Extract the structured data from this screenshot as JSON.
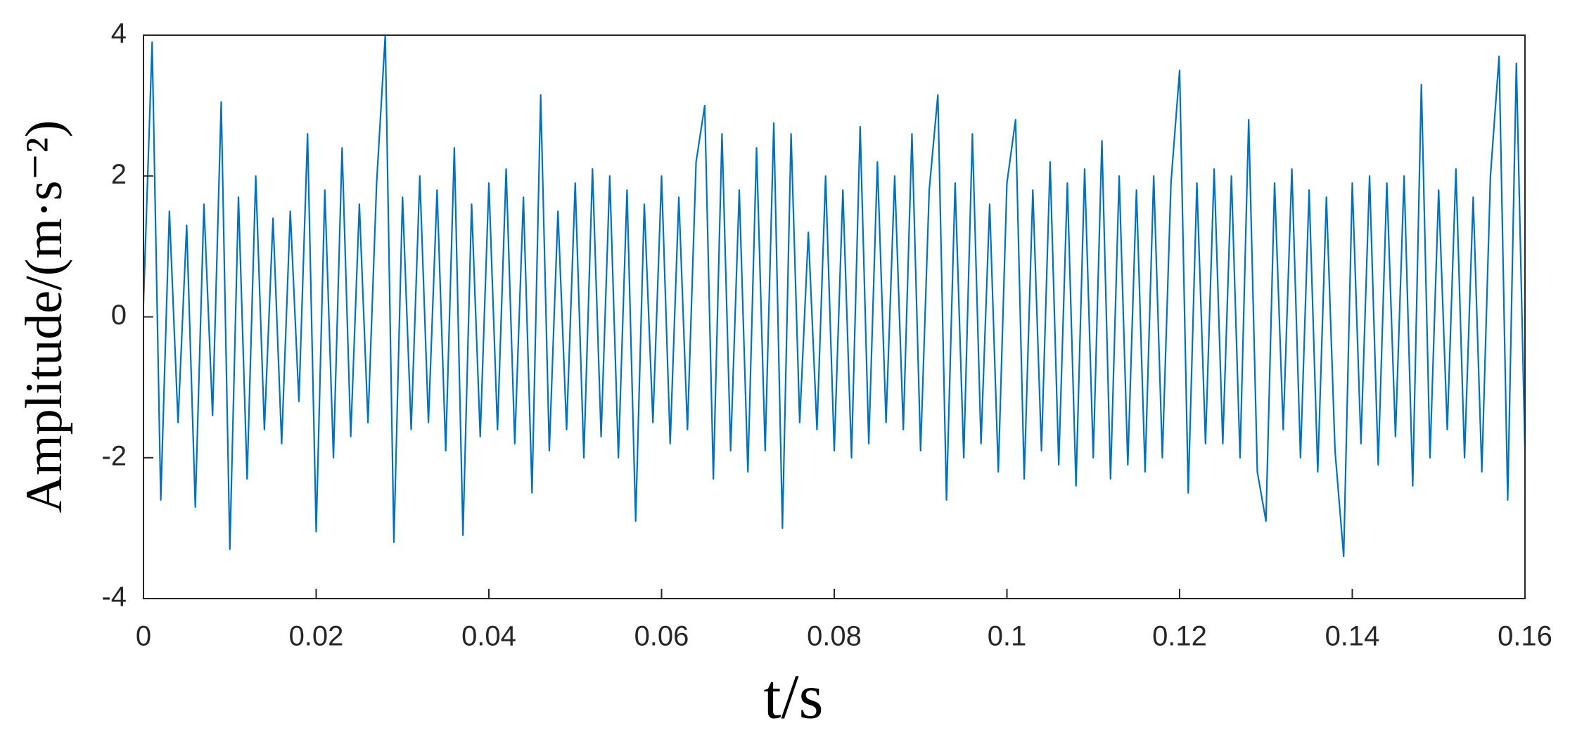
{
  "chart_data": {
    "type": "line",
    "xlabel": "t/s",
    "ylabel": "Amplitude/(m·s⁻²)",
    "color": "#0072bd",
    "xlim": [
      0,
      0.16
    ],
    "xticks": [
      0,
      0.02,
      0.04,
      0.06,
      0.08,
      0.1,
      0.12,
      0.14,
      0.16
    ],
    "ylim": [
      -4,
      4
    ],
    "yticks": [
      -4,
      -2,
      0,
      2,
      4
    ],
    "grid": false,
    "x": [
      0,
      0.001,
      0.002,
      0.003,
      0.004,
      0.005,
      0.006,
      0.007,
      0.008,
      0.009,
      0.01,
      0.011,
      0.012,
      0.013,
      0.014,
      0.015,
      0.016,
      0.017,
      0.018,
      0.019,
      0.02,
      0.021,
      0.022,
      0.023,
      0.024,
      0.025,
      0.026,
      0.027,
      0.028,
      0.029,
      0.03,
      0.031,
      0.032,
      0.033,
      0.034,
      0.035,
      0.036,
      0.037,
      0.038,
      0.039,
      0.04,
      0.041,
      0.042,
      0.043,
      0.044,
      0.045,
      0.046,
      0.047,
      0.048,
      0.049,
      0.05,
      0.051,
      0.052,
      0.053,
      0.054,
      0.055,
      0.056,
      0.057,
      0.058,
      0.059,
      0.06,
      0.061,
      0.062,
      0.063,
      0.064,
      0.065,
      0.066,
      0.067,
      0.068,
      0.069,
      0.07,
      0.071,
      0.072,
      0.073,
      0.074,
      0.075,
      0.076,
      0.077,
      0.078,
      0.079,
      0.08,
      0.081,
      0.082,
      0.083,
      0.084,
      0.085,
      0.086,
      0.087,
      0.088,
      0.089,
      0.09,
      0.091,
      0.092,
      0.093,
      0.094,
      0.095,
      0.096,
      0.097,
      0.098,
      0.099,
      0.1,
      0.101,
      0.102,
      0.103,
      0.104,
      0.105,
      0.106,
      0.107,
      0.108,
      0.109,
      0.11,
      0.111,
      0.112,
      0.113,
      0.114,
      0.115,
      0.116,
      0.117,
      0.118,
      0.119,
      0.12,
      0.121,
      0.122,
      0.123,
      0.124,
      0.125,
      0.126,
      0.127,
      0.128,
      0.129,
      0.13,
      0.131,
      0.132,
      0.133,
      0.134,
      0.135,
      0.136,
      0.137,
      0.138,
      0.139,
      0.14,
      0.141,
      0.142,
      0.143,
      0.144,
      0.145,
      0.146,
      0.147,
      0.148,
      0.149,
      0.15,
      0.151,
      0.152,
      0.153,
      0.154,
      0.155,
      0.156,
      0.157,
      0.158,
      0.159,
      0.16
    ],
    "values": [
      0.2,
      3.9,
      -2.6,
      1.5,
      -1.5,
      1.3,
      -2.7,
      1.6,
      -1.4,
      3.05,
      -3.3,
      1.7,
      -2.3,
      2.0,
      -1.6,
      1.4,
      -1.8,
      1.5,
      -1.2,
      2.6,
      -3.05,
      1.8,
      -2.0,
      2.4,
      -1.7,
      1.6,
      -1.5,
      1.9,
      4.0,
      -3.2,
      1.7,
      -1.6,
      2.0,
      -1.5,
      1.8,
      -1.9,
      2.4,
      -3.1,
      1.6,
      -1.7,
      1.9,
      -1.6,
      2.1,
      -1.8,
      1.7,
      -2.5,
      3.15,
      -1.9,
      1.5,
      -1.6,
      1.9,
      -2.0,
      2.1,
      -1.7,
      2.0,
      -2.0,
      1.8,
      -2.9,
      1.6,
      -1.5,
      2.0,
      -1.8,
      1.7,
      -1.6,
      2.2,
      3.0,
      -2.3,
      2.6,
      -1.9,
      1.8,
      -2.2,
      2.4,
      -1.9,
      2.75,
      -3.0,
      2.6,
      -1.5,
      1.2,
      -1.6,
      2.0,
      -1.9,
      1.8,
      -2.0,
      2.7,
      -1.8,
      2.2,
      -1.5,
      2.0,
      -1.6,
      2.6,
      -1.9,
      1.8,
      3.15,
      -2.6,
      1.9,
      -2.0,
      2.6,
      -1.8,
      1.6,
      -2.2,
      1.9,
      2.8,
      -2.3,
      1.8,
      -1.9,
      2.2,
      -2.1,
      1.9,
      -2.4,
      2.1,
      -2.0,
      2.5,
      -2.3,
      2.0,
      -2.1,
      1.8,
      -2.2,
      2.0,
      -2.0,
      1.9,
      3.5,
      -2.5,
      1.9,
      -1.8,
      2.1,
      -1.8,
      2.0,
      -2.0,
      2.8,
      -2.2,
      -2.9,
      1.9,
      -1.6,
      2.1,
      -2.0,
      1.8,
      -2.2,
      1.7,
      -1.9,
      -3.4,
      1.9,
      -1.8,
      2.0,
      -2.1,
      1.9,
      -1.7,
      2.0,
      -2.4,
      3.3,
      -2.0,
      1.8,
      -1.6,
      2.1,
      -2.0,
      1.7,
      -2.2,
      2.0,
      3.7,
      -2.6,
      3.6,
      -1.9
    ]
  }
}
